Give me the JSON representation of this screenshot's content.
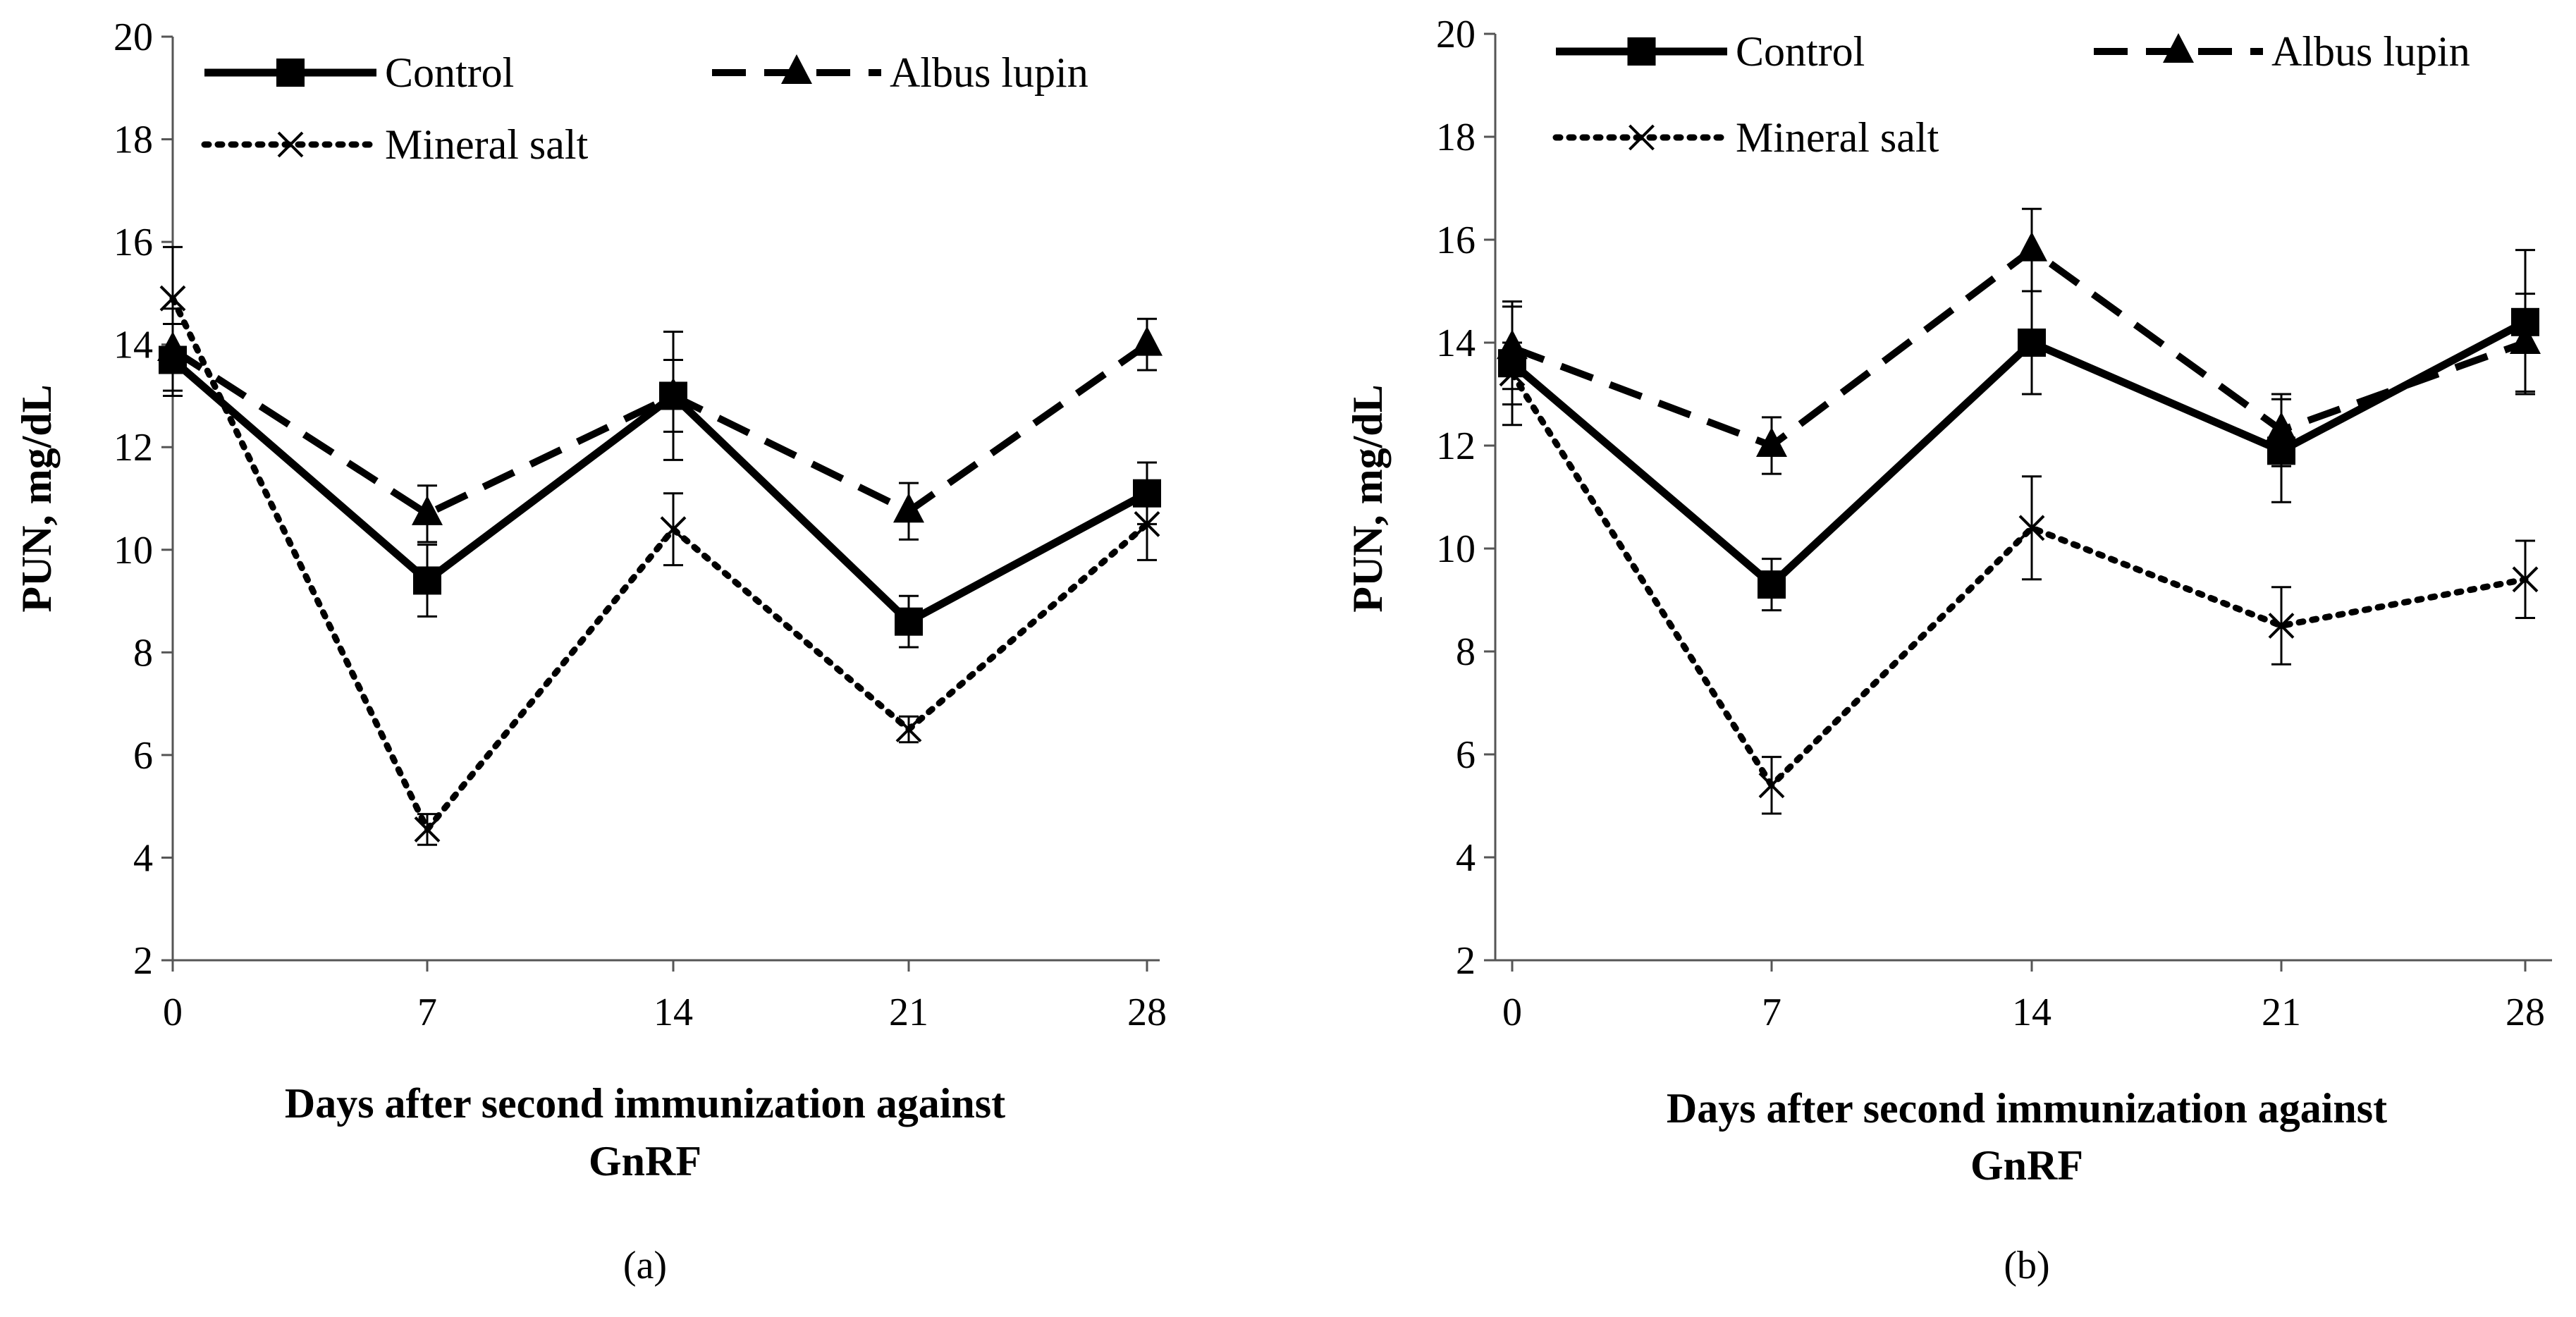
{
  "figure": {
    "background": "#ffffff",
    "ink": "#000000"
  },
  "chart_data": [
    {
      "type": "line",
      "panel_label": "(a)",
      "xlabel_lines": [
        "Days after second immunization against",
        "GnRF"
      ],
      "ylabel": "PUN, mg/dL",
      "x": [
        0,
        7,
        14,
        21,
        28
      ],
      "xlim": [
        0,
        28
      ],
      "ylim": [
        2,
        20
      ],
      "yticks": [
        2,
        4,
        6,
        8,
        10,
        12,
        14,
        16,
        18,
        20
      ],
      "grid": false,
      "legend_position": "top",
      "series": [
        {
          "name": "Control",
          "style": "solid",
          "marker": "square",
          "values": [
            13.7,
            9.4,
            13.0,
            8.6,
            11.1
          ],
          "errors": [
            0.7,
            0.7,
            0.7,
            0.5,
            0.6
          ]
        },
        {
          "name": "Albus lupin",
          "style": "dashed",
          "marker": "triangle",
          "values": [
            13.9,
            10.7,
            13.0,
            10.75,
            14.0
          ],
          "errors": [
            0.8,
            0.55,
            1.25,
            0.55,
            0.5
          ]
        },
        {
          "name": "Mineral salt",
          "style": "dotted",
          "marker": "x",
          "values": [
            14.9,
            4.55,
            10.4,
            6.5,
            10.5
          ],
          "errors": [
            1.0,
            0.3,
            0.7,
            0.25,
            0.7
          ]
        }
      ]
    },
    {
      "type": "line",
      "panel_label": "(b)",
      "xlabel_lines": [
        "Days after second immunization against",
        "GnRF"
      ],
      "ylabel": "PUN, mg/dL",
      "x": [
        0,
        7,
        14,
        21,
        28
      ],
      "xlim": [
        0,
        28
      ],
      "ylim": [
        2,
        20
      ],
      "yticks": [
        2,
        4,
        6,
        8,
        10,
        12,
        14,
        16,
        18,
        20
      ],
      "grid": false,
      "legend_position": "top",
      "series": [
        {
          "name": "Control",
          "style": "solid",
          "marker": "square",
          "values": [
            13.6,
            9.3,
            14.0,
            11.9,
            14.4
          ],
          "errors": [
            1.2,
            0.5,
            1.0,
            1.0,
            1.4
          ]
        },
        {
          "name": "Albus lupin",
          "style": "dashed",
          "marker": "triangle",
          "values": [
            13.9,
            12.0,
            15.8,
            12.3,
            14.0
          ],
          "errors": [
            0.8,
            0.55,
            0.8,
            0.7,
            0.95
          ]
        },
        {
          "name": "Mineral salt",
          "style": "dotted",
          "marker": "x",
          "values": [
            13.4,
            5.4,
            10.4,
            8.5,
            9.4
          ],
          "errors": [
            0.6,
            0.55,
            1.0,
            0.75,
            0.75
          ]
        }
      ]
    }
  ]
}
